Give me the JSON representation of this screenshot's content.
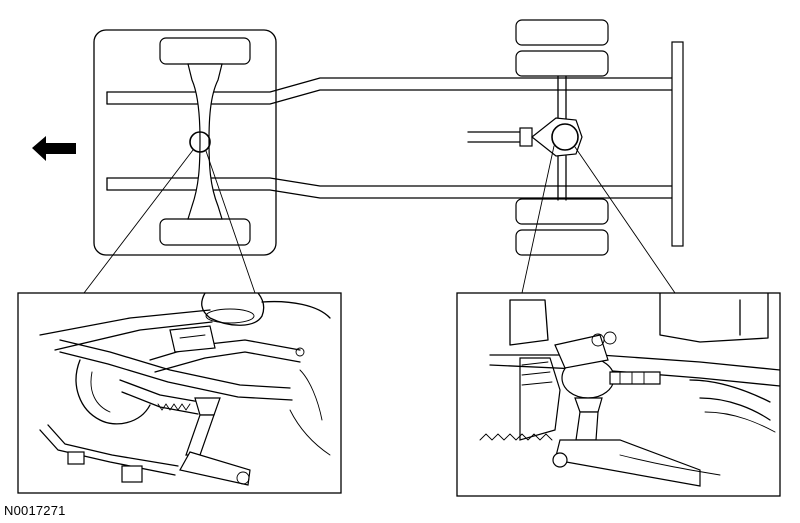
{
  "figure": {
    "reference_code": "N0017271",
    "icons": {
      "direction_arrow": "left-arrow-icon",
      "front_callout": "magnifier-circle-icon",
      "rear_callout": "magnifier-circle-icon"
    }
  }
}
